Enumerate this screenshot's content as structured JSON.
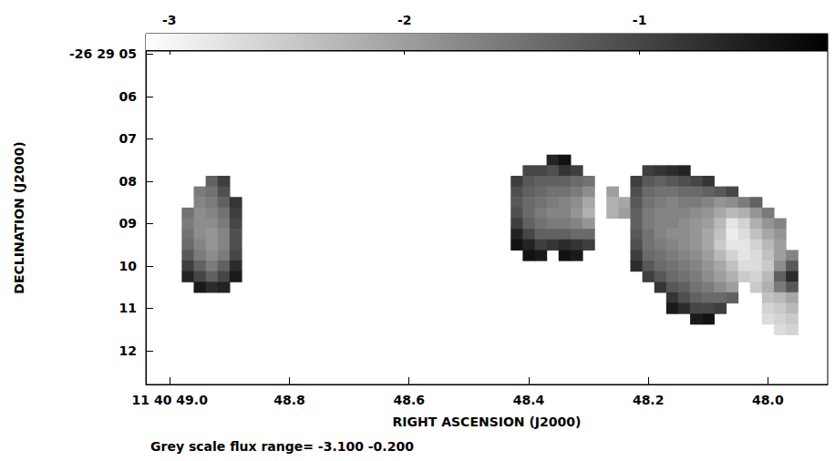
{
  "chart_data": {
    "type": "heatmap",
    "xlabel": "RIGHT ASCENSION (J2000)",
    "ylabel": "DECLINATION (J2000)",
    "caption": "Grey scale flux range= -3.100 -0.200",
    "xlim": [
      49.04,
      47.9
    ],
    "xticks": [
      {
        "value": 49.0,
        "label": "11 40 49.0"
      },
      48.8,
      48.6,
      48.4,
      48.2,
      {
        "value": 48,
        "label": "48.0"
      }
    ],
    "ylim": [
      12.8,
      4.93
    ],
    "yticks": [
      {
        "value": 5,
        "label": "-26 29 05"
      },
      {
        "value": 6,
        "label": "06"
      },
      {
        "value": 7,
        "label": "07"
      },
      {
        "value": 8,
        "label": "08"
      },
      {
        "value": 9,
        "label": "09"
      },
      10,
      11,
      12
    ],
    "grid": false,
    "colorbar": {
      "range": [
        -3.1,
        -0.2
      ],
      "ticks": [
        -3,
        -2,
        -1
      ]
    },
    "regions": [
      {
        "x": [
          48.97,
          48.95,
          48.93,
          48.91,
          48.89
        ],
        "y": [
          8.0,
          8.25,
          8.5,
          8.75,
          9.0,
          9.25,
          9.5,
          9.75,
          10.0,
          10.25,
          10.5
        ],
        "z": [
          [
            null,
            null,
            -1.3,
            -0.9,
            null
          ],
          [
            null,
            -1.6,
            -1.5,
            -1.1,
            null
          ],
          [
            null,
            -1.7,
            -1.6,
            -1.3,
            -0.8
          ],
          [
            -1.5,
            -1.8,
            -1.7,
            -1.5,
            -0.9
          ],
          [
            -1.6,
            -1.8,
            -1.8,
            -1.6,
            -1.0
          ],
          [
            -1.5,
            -1.8,
            -1.9,
            -1.7,
            -1.1
          ],
          [
            -1.4,
            -1.7,
            -1.9,
            -1.7,
            -1.1
          ],
          [
            -1.2,
            -1.6,
            -1.8,
            -1.6,
            -1.0
          ],
          [
            -0.9,
            -1.3,
            -1.6,
            -1.3,
            -0.7
          ],
          [
            -0.6,
            -1.0,
            -1.3,
            -1.0,
            -0.5
          ],
          [
            null,
            -0.5,
            -0.7,
            -0.6,
            null
          ]
        ]
      },
      {
        "x": [
          48.42,
          48.4,
          48.38,
          48.36,
          48.34,
          48.32,
          48.3,
          48.28,
          48.26,
          48.24
        ],
        "y": [
          7.5,
          7.75,
          8.0,
          8.25,
          8.5,
          8.75,
          9.0,
          9.25,
          9.5,
          9.75
        ],
        "z": [
          [
            null,
            null,
            null,
            -0.6,
            -0.4,
            null,
            null,
            null,
            null,
            null
          ],
          [
            null,
            -1.0,
            -1.0,
            -1.1,
            -0.8,
            -0.9,
            null,
            null,
            null,
            null
          ],
          [
            -0.9,
            -1.2,
            -1.3,
            -1.3,
            -1.3,
            -1.4,
            -1.5,
            null,
            null,
            null
          ],
          [
            -1.1,
            -1.3,
            -1.4,
            -1.5,
            -1.5,
            -1.6,
            -1.8,
            null,
            -2.0,
            null
          ],
          [
            -1.2,
            -1.4,
            -1.5,
            -1.6,
            -1.7,
            -1.8,
            -2.1,
            null,
            -2.2,
            -2.1
          ],
          [
            -1.1,
            -1.4,
            -1.6,
            -1.7,
            -1.7,
            -1.9,
            -2.2,
            null,
            -2.2,
            -2.0
          ],
          [
            -0.9,
            -1.3,
            -1.5,
            -1.6,
            -1.6,
            -1.7,
            -1.9,
            null,
            null,
            null
          ],
          [
            -0.6,
            -1.0,
            -1.3,
            -1.3,
            -1.3,
            -1.4,
            -1.4,
            null,
            null,
            null
          ],
          [
            -0.4,
            -0.6,
            -0.9,
            -0.8,
            -0.7,
            -0.8,
            -0.9,
            null,
            null,
            null
          ],
          [
            null,
            -0.4,
            -0.5,
            null,
            -0.4,
            -0.5,
            null,
            null,
            null,
            null
          ]
        ]
      },
      {
        "x": [
          48.22,
          48.2,
          48.18,
          48.16,
          48.14,
          48.12,
          48.1,
          48.08,
          48.06,
          48.04,
          48.02,
          48.0,
          47.98,
          47.96
        ],
        "y": [
          7.75,
          8.0,
          8.25,
          8.5,
          8.75,
          9.0,
          9.25,
          9.5,
          9.75,
          10.0,
          10.25,
          10.5,
          10.75,
          11.0,
          11.25,
          11.5
        ],
        "z": [
          [
            null,
            -0.9,
            -0.8,
            -0.7,
            -0.6,
            null,
            null,
            null,
            null,
            null,
            null,
            null,
            null,
            null
          ],
          [
            -0.9,
            -1.2,
            -1.3,
            -1.2,
            -1.1,
            -1.0,
            -0.8,
            null,
            null,
            null,
            null,
            null,
            null,
            null
          ],
          [
            -1.1,
            -1.4,
            -1.5,
            -1.5,
            -1.4,
            -1.4,
            -1.3,
            -1.2,
            -1.0,
            null,
            null,
            null,
            null,
            null
          ],
          [
            -1.2,
            -1.5,
            -1.6,
            -1.7,
            -1.6,
            -1.6,
            -1.7,
            -1.9,
            -1.8,
            -1.6,
            -1.3,
            null,
            null,
            null
          ],
          [
            -1.3,
            -1.6,
            -1.7,
            -1.7,
            -1.7,
            -1.8,
            -1.9,
            -2.1,
            -2.3,
            -2.2,
            -1.9,
            -1.6,
            null,
            null
          ],
          [
            -1.3,
            -1.6,
            -1.7,
            -1.7,
            -1.8,
            -1.9,
            -2.0,
            -2.3,
            -2.8,
            -2.6,
            -2.2,
            -1.9,
            -1.7,
            null
          ],
          [
            -1.2,
            -1.5,
            -1.7,
            -1.8,
            -1.8,
            -1.9,
            -2.1,
            -2.4,
            -2.9,
            -2.7,
            -2.4,
            -2.1,
            -1.9,
            null
          ],
          [
            -1.1,
            -1.5,
            -1.6,
            -1.7,
            -1.8,
            -1.9,
            -2.1,
            -2.5,
            -2.8,
            -2.8,
            -2.6,
            -2.3,
            -2.0,
            null
          ],
          [
            -0.9,
            -1.4,
            -1.5,
            -1.6,
            -1.7,
            -1.8,
            -2.0,
            -2.3,
            -2.6,
            -2.8,
            -2.7,
            -2.4,
            -2.0,
            -1.7
          ],
          [
            -0.7,
            -1.2,
            -1.4,
            -1.5,
            -1.6,
            -1.7,
            -1.9,
            -2.1,
            -2.4,
            -2.7,
            -2.7,
            -2.5,
            -1.8,
            -1.2
          ],
          [
            null,
            -0.9,
            -1.2,
            -1.4,
            -1.5,
            -1.6,
            -1.8,
            -2.0,
            -2.2,
            -2.5,
            -2.6,
            -2.3,
            -1.3,
            -0.7
          ],
          [
            null,
            null,
            -0.8,
            -1.2,
            -1.3,
            -1.5,
            -1.6,
            -1.8,
            -2.0,
            null,
            -2.5,
            -2.2,
            -1.6,
            -1.2
          ],
          [
            null,
            null,
            null,
            -0.8,
            -1.1,
            -1.3,
            -1.4,
            -1.4,
            -1.3,
            null,
            null,
            -2.4,
            -2.3,
            -2.1
          ],
          [
            null,
            null,
            null,
            -0.5,
            -0.7,
            -1.0,
            -1.0,
            -0.9,
            null,
            null,
            null,
            -2.6,
            -2.5,
            -2.3
          ],
          [
            null,
            null,
            null,
            null,
            null,
            -0.5,
            -0.4,
            null,
            null,
            null,
            null,
            -2.7,
            -2.6,
            -2.5
          ],
          [
            null,
            null,
            null,
            null,
            null,
            null,
            null,
            null,
            null,
            null,
            null,
            null,
            -2.7,
            -2.6
          ]
        ]
      }
    ]
  }
}
